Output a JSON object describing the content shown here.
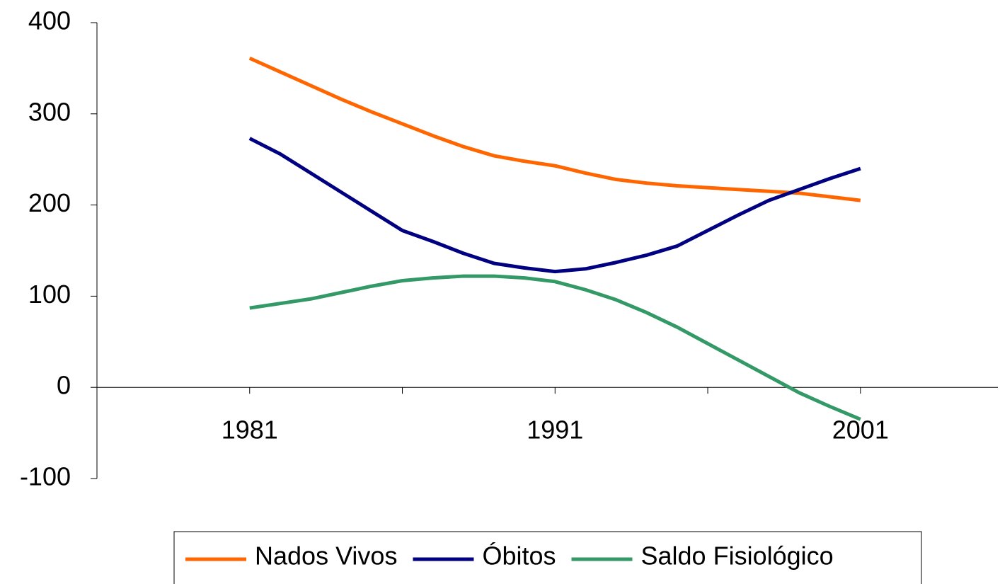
{
  "chart_data": {
    "type": "line",
    "x": [
      1981,
      1982,
      1983,
      1984,
      1985,
      1986,
      1987,
      1988,
      1989,
      1990,
      1991,
      1992,
      1993,
      1994,
      1995,
      1996,
      1997,
      1998,
      1999,
      2000,
      2001
    ],
    "series": [
      {
        "name": "Nados Vivos",
        "color": "#ff6600",
        "values": [
          361,
          346,
          331,
          316,
          302,
          289,
          276,
          264,
          254,
          248,
          243,
          235,
          228,
          224,
          221,
          219,
          217,
          215,
          213,
          209,
          205
        ]
      },
      {
        "name": "Óbitos",
        "color": "#000080",
        "values": [
          273,
          256,
          235,
          214,
          193,
          172,
          160,
          147,
          136,
          131,
          127,
          130,
          137,
          145,
          155,
          172,
          189,
          205,
          217,
          229,
          240
        ]
      },
      {
        "name": "Saldo Fisiológico",
        "color": "#339966",
        "values": [
          87,
          92,
          97,
          104,
          111,
          117,
          120,
          122,
          122,
          120,
          116,
          107,
          96,
          82,
          66,
          48,
          30,
          12,
          -6,
          -21,
          -35
        ]
      }
    ],
    "xlim": [
      1976,
      2005.5
    ],
    "xticks": [
      1981,
      1991,
      2001
    ],
    "xminor_ticks": [
      1986,
      1996
    ],
    "ylim": [
      -100,
      400
    ],
    "yticks": [
      -100,
      0,
      100,
      200,
      300,
      400
    ],
    "grid": false,
    "legend": "bottom"
  }
}
